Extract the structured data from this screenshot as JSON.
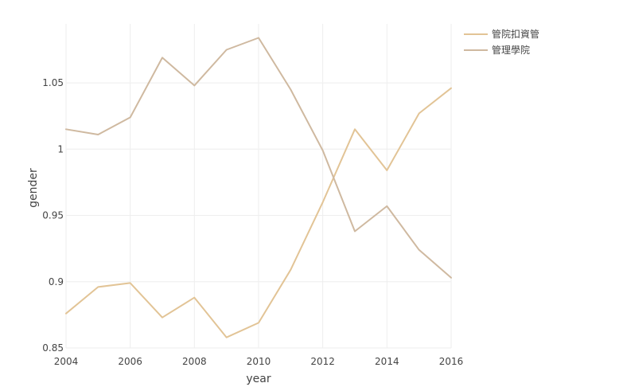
{
  "chart_data": {
    "type": "line",
    "xlabel": "year",
    "ylabel": "gender",
    "xlim": [
      2004,
      2016
    ],
    "ylim": [
      0.85,
      1.0945
    ],
    "x_ticks": [
      2004,
      2006,
      2008,
      2010,
      2012,
      2014,
      2016
    ],
    "x_tick_labels": [
      "2004",
      "2006",
      "2008",
      "2010",
      "2012",
      "2014",
      "2016"
    ],
    "y_ticks": [
      0.85,
      0.9,
      0.95,
      1.0,
      1.05
    ],
    "y_tick_labels": [
      "0.85",
      "0.9",
      "0.95",
      "1",
      "1.05"
    ],
    "grid": true,
    "legend_position": "top-right",
    "x": [
      2004,
      2005,
      2006,
      2007,
      2008,
      2009,
      2010,
      2011,
      2012,
      2013,
      2014,
      2015,
      2016
    ],
    "series": [
      {
        "name": "管院扣資管",
        "color": "#e2c496",
        "values": [
          0.876,
          0.896,
          0.899,
          0.873,
          0.888,
          0.858,
          0.869,
          0.909,
          0.96,
          1.015,
          0.984,
          1.027,
          1.046
        ]
      },
      {
        "name": "管理學院",
        "color": "#cfb9a0",
        "values": [
          1.015,
          1.011,
          1.024,
          1.069,
          1.048,
          1.075,
          1.084,
          1.045,
          0.999,
          0.938,
          0.957,
          0.924,
          0.903
        ]
      }
    ]
  }
}
